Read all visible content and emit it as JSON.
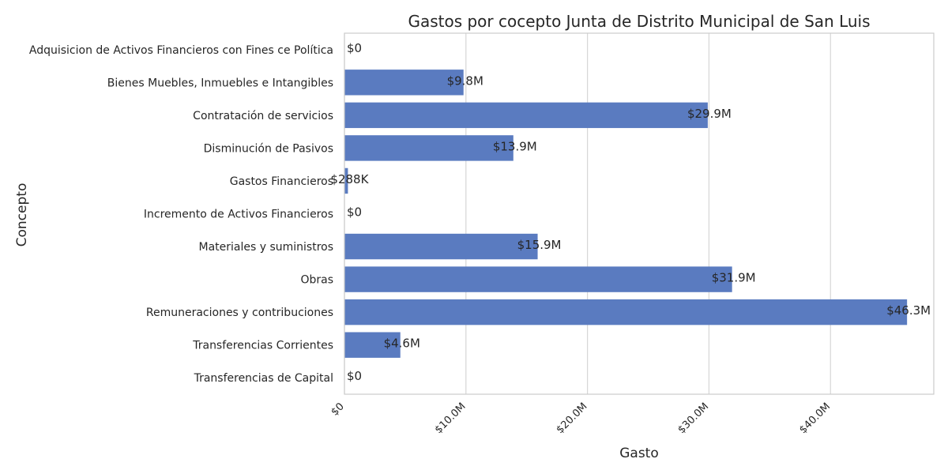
{
  "chart_data": {
    "type": "bar",
    "orientation": "horizontal",
    "title": "Gastos por cocepto Junta de Distrito Municipal de San Luis",
    "xlabel": "Gasto",
    "ylabel": "Concepto",
    "categories": [
      "Adquisicion de Activos Financieros con Fines ce Política",
      "Bienes Muebles, Inmuebles e Intangibles",
      "Contratación de servicios",
      "Disminución de Pasivos",
      "Gastos Financieros",
      "Incremento de Activos Financieros",
      "Materiales y suministros",
      "Obras",
      "Remuneraciones y contribuciones",
      "Transferencias Corrientes",
      "Transferencias de Capital"
    ],
    "values": [
      0,
      9800000,
      29900000,
      13900000,
      288000,
      0,
      15900000,
      31900000,
      46300000,
      4600000,
      0
    ],
    "data_labels": [
      "$0",
      "$9.8M",
      "$29.9M",
      "$13.9M",
      "$288K",
      "$0",
      "$15.9M",
      "$31.9M",
      "$46.3M",
      "$4.6M",
      "$0"
    ],
    "xlim": [
      0,
      48500000
    ],
    "xticks": [
      0,
      10000000,
      20000000,
      30000000,
      40000000
    ],
    "xtick_labels": [
      "$0",
      "$10.0M",
      "$20.0M",
      "$30.0M",
      "$40.0M"
    ],
    "grid": "vertical",
    "bar_color": "#5a7bc0"
  }
}
